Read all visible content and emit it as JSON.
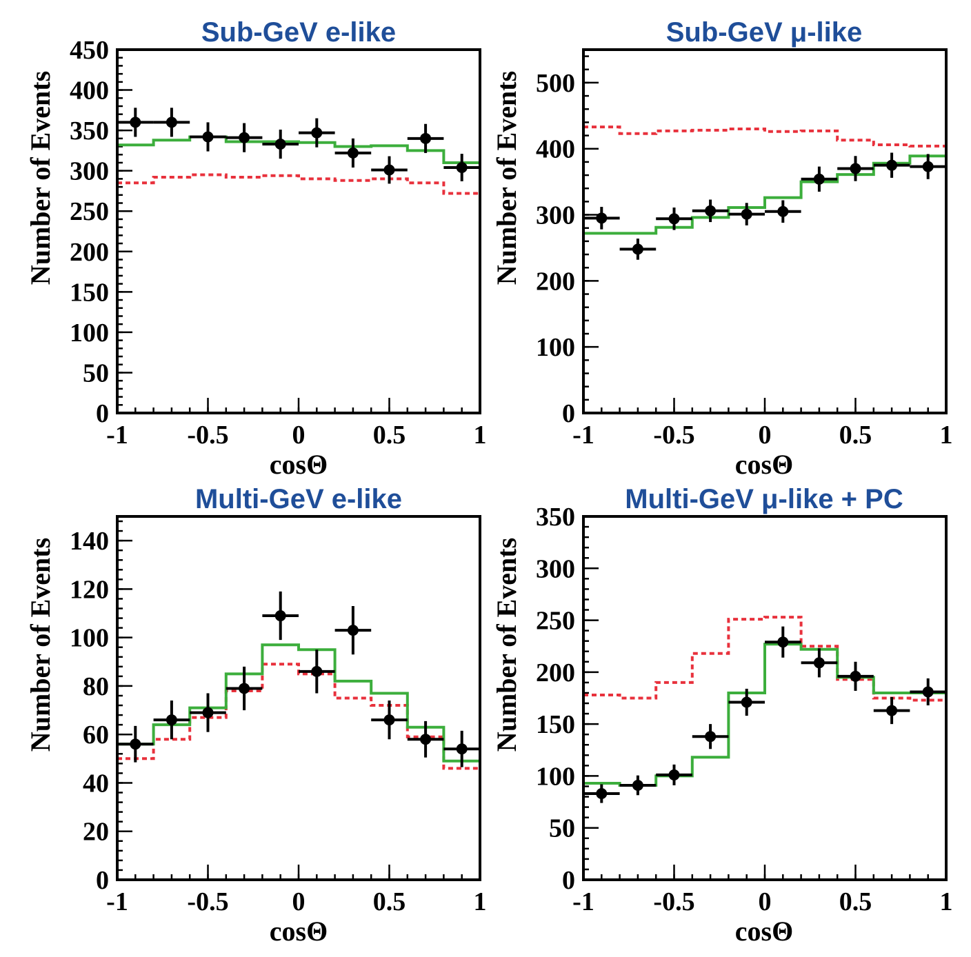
{
  "chart_data": [
    {
      "type": "scatter",
      "title": "Sub-GeV e-like",
      "xlabel": "cosΘ",
      "ylabel": "Number of Events",
      "xlim": [
        -1,
        1
      ],
      "ylim": [
        0,
        450
      ],
      "xticks": [
        "-1",
        "-0.5",
        "0",
        "0.5",
        "1"
      ],
      "yticks": [
        0,
        50,
        100,
        150,
        200,
        250,
        300,
        350,
        400,
        450
      ],
      "y_minor": 10,
      "grid": false,
      "bin_edges": [
        -1,
        -0.8,
        -0.6,
        -0.4,
        -0.2,
        0,
        0.2,
        0.4,
        0.6,
        0.8,
        1
      ],
      "series": [
        {
          "kind": "data",
          "color": "#000000",
          "x": [
            -0.9,
            -0.7,
            -0.5,
            -0.3,
            -0.1,
            0.1,
            0.3,
            0.5,
            0.7,
            0.9
          ],
          "y": [
            360,
            360,
            342,
            341,
            333,
            347,
            322,
            301,
            340,
            304
          ],
          "yerr": [
            18,
            18,
            18,
            18,
            18,
            18,
            18,
            17,
            18,
            17
          ]
        },
        {
          "kind": "step",
          "color": "#3cae3c",
          "dash": "",
          "y": [
            332,
            338,
            342,
            336,
            336,
            335,
            330,
            331,
            325,
            310
          ]
        },
        {
          "kind": "step",
          "color": "#e8313c",
          "dash": "7 5",
          "y": [
            285,
            292,
            295,
            292,
            294,
            290,
            288,
            290,
            285,
            272
          ]
        }
      ]
    },
    {
      "type": "scatter",
      "title": "Sub-GeV μ-like",
      "xlabel": "cosΘ",
      "ylabel": "Number of Events",
      "xlim": [
        -1,
        1
      ],
      "ylim": [
        0,
        550
      ],
      "xticks": [
        "-1",
        "-0.5",
        "0",
        "0.5",
        "1"
      ],
      "yticks": [
        0,
        100,
        200,
        300,
        400,
        500
      ],
      "y_minor": 20,
      "grid": false,
      "bin_edges": [
        -1,
        -0.8,
        -0.6,
        -0.4,
        -0.2,
        0,
        0.2,
        0.4,
        0.6,
        0.8,
        1
      ],
      "series": [
        {
          "kind": "data",
          "color": "#000000",
          "x": [
            -0.9,
            -0.7,
            -0.5,
            -0.3,
            -0.1,
            0.1,
            0.3,
            0.5,
            0.7,
            0.9
          ],
          "y": [
            295,
            248,
            294,
            306,
            301,
            305,
            354,
            370,
            375,
            373
          ],
          "yerr": [
            17,
            16,
            17,
            17,
            17,
            17,
            19,
            19,
            19,
            19
          ]
        },
        {
          "kind": "step",
          "color": "#3cae3c",
          "dash": "",
          "y": [
            272,
            272,
            281,
            296,
            311,
            326,
            350,
            361,
            378,
            389
          ]
        },
        {
          "kind": "step",
          "color": "#e8313c",
          "dash": "7 5",
          "y": [
            433,
            423,
            427,
            428,
            430,
            426,
            427,
            413,
            406,
            404
          ]
        }
      ]
    },
    {
      "type": "scatter",
      "title": "Multi-GeV e-like",
      "xlabel": "cosΘ",
      "ylabel": "Number of Events",
      "xlim": [
        -1,
        1
      ],
      "ylim": [
        0,
        150
      ],
      "xticks": [
        "-1",
        "-0.5",
        "0",
        "0.5",
        "1"
      ],
      "yticks": [
        0,
        20,
        40,
        60,
        80,
        100,
        120,
        140
      ],
      "y_minor": 4,
      "grid": false,
      "bin_edges": [
        -1,
        -0.8,
        -0.6,
        -0.4,
        -0.2,
        0,
        0.2,
        0.4,
        0.6,
        0.8,
        1
      ],
      "series": [
        {
          "kind": "data",
          "color": "#000000",
          "x": [
            -0.9,
            -0.7,
            -0.5,
            -0.3,
            -0.1,
            0.1,
            0.3,
            0.5,
            0.7,
            0.9
          ],
          "y": [
            56,
            66,
            69,
            79,
            109,
            86,
            103,
            66,
            58,
            54
          ],
          "yerr": [
            7.5,
            8,
            8,
            9,
            10,
            9,
            10,
            8,
            7.5,
            7.5
          ]
        },
        {
          "kind": "step",
          "color": "#3cae3c",
          "dash": "",
          "y": [
            56,
            64,
            71,
            85,
            97,
            95,
            82,
            77,
            63,
            49
          ]
        },
        {
          "kind": "step",
          "color": "#e8313c",
          "dash": "7 5",
          "y": [
            50,
            58,
            67,
            78,
            89,
            85,
            75,
            72,
            59,
            46
          ]
        }
      ]
    },
    {
      "type": "scatter",
      "title": "Multi-GeV μ-like + PC",
      "xlabel": "cosΘ",
      "ylabel": "Number of Events",
      "xlim": [
        -1,
        1
      ],
      "ylim": [
        0,
        350
      ],
      "xticks": [
        "-1",
        "-0.5",
        "0",
        "0.5",
        "1"
      ],
      "yticks": [
        0,
        50,
        100,
        150,
        200,
        250,
        300,
        350
      ],
      "y_minor": 10,
      "grid": false,
      "bin_edges": [
        -1,
        -0.8,
        -0.6,
        -0.4,
        -0.2,
        0,
        0.2,
        0.4,
        0.6,
        0.8,
        1
      ],
      "series": [
        {
          "kind": "data",
          "color": "#000000",
          "x": [
            -0.9,
            -0.7,
            -0.5,
            -0.3,
            -0.1,
            0.1,
            0.3,
            0.5,
            0.7,
            0.9
          ],
          "y": [
            83,
            91,
            101,
            138,
            171,
            229,
            209,
            196,
            163,
            181
          ],
          "yerr": [
            9,
            9.5,
            10,
            12,
            13,
            15,
            14,
            14,
            13,
            13
          ]
        },
        {
          "kind": "step",
          "color": "#3cae3c",
          "dash": "",
          "y": [
            93,
            91,
            100,
            118,
            180,
            227,
            222,
            195,
            180,
            180
          ]
        },
        {
          "kind": "step",
          "color": "#e8313c",
          "dash": "7 5",
          "y": [
            178,
            175,
            190,
            218,
            251,
            253,
            225,
            193,
            175,
            173
          ]
        }
      ]
    }
  ]
}
